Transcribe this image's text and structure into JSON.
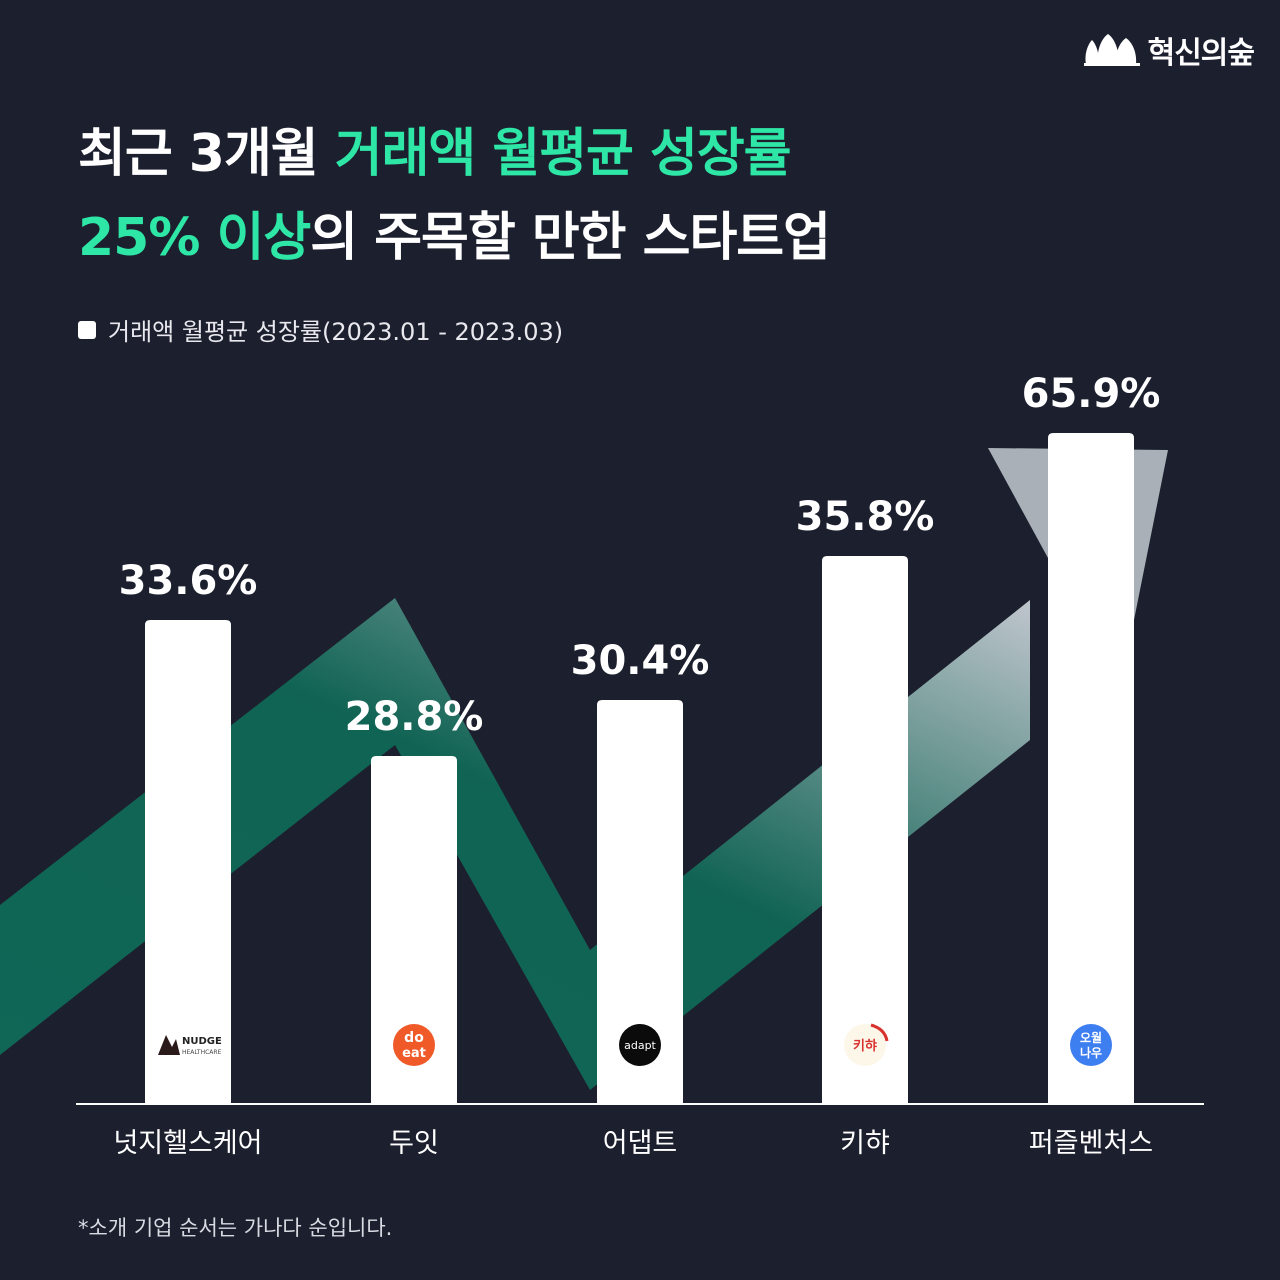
{
  "brand": {
    "name": "혁신의숲",
    "logo_icon": "forest-trees-icon"
  },
  "title": {
    "line1_plain": "최근 3개월 ",
    "line1_accent": "거래액 월평균 성장률",
    "line2_accent": "25% 이상",
    "line2_plain": "의 주목할 만한 스타트업"
  },
  "colors": {
    "background": "#1c1f2e",
    "accent": "#2ee6a6",
    "bar": "#ffffff",
    "trend": "#0f6b58"
  },
  "footnote": "*소개 기업 순서는 가나다 순입니다.",
  "chart_data": {
    "type": "bar",
    "legend": "거래액 월평균 성장률(2023.01 - 2023.03)",
    "categories": [
      "넛지헬스케어",
      "두잇",
      "어댑트",
      "키햐",
      "퍼즐벤처스"
    ],
    "values": [
      33.6,
      28.8,
      30.4,
      35.8,
      65.9
    ],
    "value_labels": [
      "33.6%",
      "28.8%",
      "30.4%",
      "35.8%",
      "65.9%"
    ],
    "logos": [
      {
        "icon": "nudge-healthcare-logo",
        "text": "NUDGE",
        "sub": "HEALTHCARE"
      },
      {
        "icon": "doeat-logo",
        "text": "do",
        "sub": "eat"
      },
      {
        "icon": "adapt-logo",
        "text": "adapt"
      },
      {
        "icon": "kiha-logo",
        "text": "키햐"
      },
      {
        "icon": "owl-now-logo",
        "text": "오월",
        "sub": "나우"
      }
    ],
    "unit": "%",
    "ylim": [
      0,
      70
    ],
    "grid": false,
    "legend_position": "top-left"
  }
}
